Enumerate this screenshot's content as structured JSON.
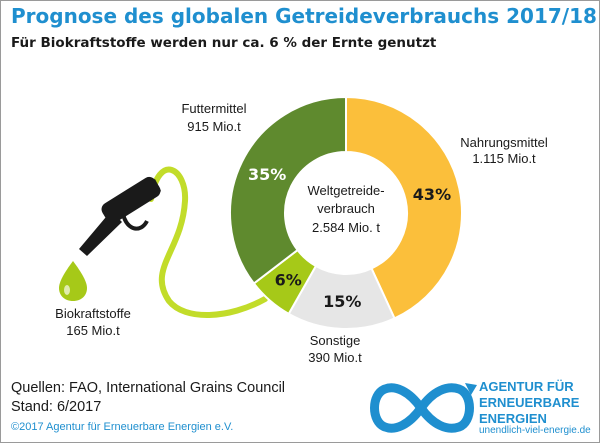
{
  "header": {
    "title": "Prognose des globalen Getreideverbrauchs 2017/18",
    "subtitle": "Für Biokraftstoffe werden nur ca. 6 % der Ernte genutzt"
  },
  "chart_data": {
    "type": "pie",
    "title": "Prognose des globalen Getreideverbrauchs 2017/18",
    "center_label": [
      "Weltgetreide-",
      "verbrauch",
      "2.584 Mio. t"
    ],
    "slices": [
      {
        "name": "Nahrungsmittel",
        "value_label": "1.115 Mio.t",
        "value": 1115,
        "percent": 43,
        "percent_label": "43%",
        "color": "#fbbf3b",
        "pct_color": "#1a1a1a"
      },
      {
        "name": "Sonstige",
        "value_label": "390 Mio.t",
        "value": 390,
        "percent": 15,
        "percent_label": "15%",
        "color": "#e6e6e6",
        "pct_color": "#1a1a1a"
      },
      {
        "name": "Biokraftstoffe",
        "value_label": "165 Mio.t",
        "value": 165,
        "percent": 6,
        "percent_label": "6%",
        "color": "#a6c918",
        "pct_color": "#1a1a1a"
      },
      {
        "name": "Futtermittel",
        "value_label": "915 Mio.t",
        "value": 915,
        "percent": 35,
        "percent_label": "35%",
        "color": "#5f8a2e",
        "pct_color": "#ffffff"
      }
    ]
  },
  "footer": {
    "sources": "Quellen: FAO, International Grains Council",
    "stand": "Stand: 6/2017",
    "copyright": "©2017 Agentur für Erneuerbare Energien e.V."
  },
  "logo": {
    "line1": "AGENTUR FÜR",
    "line2": "ERNEUERBARE",
    "line3": "ENERGIEN",
    "url": "unendlich-viel-energie.de",
    "color": "#1f8fcf"
  }
}
